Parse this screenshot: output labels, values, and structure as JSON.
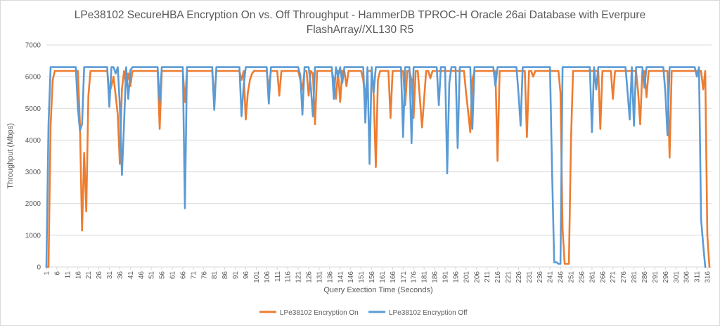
{
  "chart_data": {
    "type": "line",
    "title": "LPe38102 SecureHBA Encryption On vs. Off Throughput - HammerDB TPROC-H Oracle 26ai Database with Everpure FlashArray//XL130 R5",
    "title_lines": [
      "LPe38102 SecureHBA Encryption On vs. Off Throughput - HammerDB TPROC-H Oracle 26ai Database with Everpure",
      "FlashArray//XL130 R5"
    ],
    "xlabel": "Query Exection Time (Seconds)",
    "ylabel": "Throughput (Mbps)",
    "xlim": [
      1,
      318
    ],
    "ylim": [
      0,
      7000
    ],
    "yticks": [
      0,
      1000,
      2000,
      3000,
      4000,
      5000,
      6000,
      7000
    ],
    "xticks": [
      1,
      6,
      11,
      16,
      21,
      26,
      31,
      36,
      41,
      46,
      51,
      56,
      61,
      66,
      71,
      76,
      81,
      86,
      91,
      96,
      101,
      106,
      111,
      116,
      121,
      126,
      131,
      136,
      141,
      146,
      151,
      156,
      161,
      166,
      171,
      176,
      181,
      186,
      191,
      196,
      201,
      206,
      211,
      216,
      221,
      226,
      231,
      236,
      241,
      246,
      251,
      256,
      261,
      266,
      271,
      276,
      281,
      286,
      291,
      296,
      301,
      306,
      311,
      316
    ],
    "grid": "horizontal",
    "legend_position": "bottom",
    "series": [
      {
        "name": "LPe38102 Encryption On",
        "color": "#ED7D31",
        "x": [
          1,
          2,
          3,
          4,
          5,
          16,
          17,
          18,
          19,
          20,
          21,
          22,
          30,
          31,
          32,
          33,
          34,
          35,
          36,
          37,
          38,
          39,
          40,
          41,
          42,
          43,
          54,
          55,
          56,
          66,
          67,
          68,
          80,
          81,
          82,
          93,
          94,
          95,
          96,
          97,
          98,
          99,
          100,
          106,
          107,
          108,
          111,
          112,
          113,
          121,
          122,
          123,
          124,
          125,
          126,
          127,
          128,
          129,
          130,
          137,
          138,
          139,
          140,
          141,
          142,
          143,
          144,
          145,
          151,
          152,
          153,
          154,
          155,
          156,
          157,
          158,
          159,
          160,
          161,
          162,
          164,
          165,
          166,
          171,
          172,
          173,
          174,
          175,
          176,
          177,
          178,
          179,
          180,
          182,
          183,
          184,
          185,
          200,
          201,
          202,
          203,
          204,
          205,
          215,
          216,
          217,
          229,
          230,
          231,
          232,
          233,
          234,
          245,
          246,
          247,
          248,
          249,
          250,
          251,
          252,
          264,
          265,
          266,
          270,
          271,
          272,
          282,
          283,
          284,
          285,
          286,
          287,
          288,
          297,
          298,
          299,
          313,
          314,
          315,
          316,
          317
        ],
        "y": [
          0,
          0,
          4500,
          5900,
          6180,
          6180,
          4500,
          1150,
          3600,
          1750,
          5400,
          6180,
          6180,
          5500,
          5700,
          6000,
          5400,
          4800,
          3250,
          5600,
          6180,
          5700,
          6100,
          5700,
          6180,
          6180,
          6180,
          4350,
          6180,
          6180,
          5200,
          6180,
          6180,
          5300,
          6180,
          6180,
          5900,
          6180,
          4650,
          5500,
          5900,
          6100,
          6180,
          6180,
          5600,
          6180,
          6180,
          5400,
          6180,
          6180,
          5900,
          5600,
          6180,
          6180,
          5400,
          6180,
          6100,
          4500,
          6180,
          6180,
          5900,
          5300,
          6180,
          5200,
          6180,
          6180,
          5700,
          6180,
          6180,
          5900,
          5300,
          6180,
          6180,
          6180,
          5400,
          3150,
          5900,
          6180,
          6180,
          6180,
          6180,
          4700,
          6180,
          6180,
          5100,
          6180,
          6180,
          5900,
          4700,
          6180,
          6180,
          5300,
          4400,
          6180,
          6180,
          5950,
          6180,
          6180,
          5500,
          4900,
          4250,
          5900,
          6180,
          6180,
          3350,
          6180,
          6180,
          4100,
          6180,
          6180,
          6000,
          6180,
          6180,
          5500,
          1200,
          100,
          100,
          100,
          4000,
          6180,
          6180,
          4350,
          6180,
          6180,
          5300,
          6180,
          6180,
          5500,
          4500,
          6180,
          6180,
          5350,
          6180,
          6180,
          3450,
          6180,
          6180,
          5600,
          6180,
          1000,
          0
        ]
      },
      {
        "name": "LPe38102 Encryption Off",
        "color": "#5B9BD5",
        "x": [
          1,
          2,
          3,
          4,
          15,
          16,
          17,
          18,
          19,
          20,
          30,
          31,
          32,
          33,
          34,
          35,
          36,
          37,
          38,
          39,
          40,
          41,
          42,
          43,
          54,
          55,
          56,
          66,
          67,
          68,
          80,
          81,
          82,
          93,
          94,
          95,
          96,
          106,
          107,
          108,
          121,
          122,
          123,
          124,
          125,
          126,
          127,
          128,
          129,
          137,
          138,
          139,
          140,
          141,
          142,
          143,
          152,
          153,
          154,
          155,
          156,
          157,
          158,
          159,
          160,
          170,
          171,
          172,
          174,
          175,
          176,
          177,
          187,
          188,
          189,
          191,
          192,
          193,
          194,
          195,
          196,
          197,
          198,
          203,
          204,
          205,
          214,
          215,
          216,
          225,
          226,
          227,
          228,
          229,
          230,
          241,
          242,
          243,
          244,
          245,
          246,
          247,
          248,
          249,
          260,
          261,
          262,
          263,
          264,
          265,
          266,
          267,
          277,
          278,
          279,
          280,
          281,
          282,
          283,
          285,
          286,
          287,
          295,
          296,
          297,
          298,
          309,
          310,
          311,
          312,
          313,
          314,
          315
        ],
        "y": [
          0,
          4500,
          6300,
          6300,
          6300,
          5000,
          4300,
          4500,
          6300,
          6300,
          6300,
          5050,
          6300,
          6300,
          6100,
          6300,
          5100,
          2900,
          4500,
          6300,
          5300,
          6200,
          6300,
          6300,
          6300,
          5200,
          6300,
          6300,
          1850,
          6300,
          6300,
          4950,
          6300,
          6300,
          4750,
          5700,
          6300,
          6300,
          5150,
          6300,
          6300,
          6050,
          4800,
          6300,
          6300,
          6300,
          5700,
          4750,
          6300,
          6300,
          5300,
          6300,
          6000,
          6300,
          5800,
          6300,
          6300,
          4550,
          6300,
          3250,
          6300,
          5500,
          6300,
          6300,
          6300,
          6300,
          4100,
          6300,
          6300,
          3900,
          6300,
          6300,
          6300,
          5100,
          6300,
          6300,
          2950,
          5800,
          6300,
          6300,
          6300,
          3750,
          6300,
          6300,
          4350,
          6300,
          6300,
          5700,
          6300,
          6300,
          5450,
          4450,
          6300,
          6300,
          6300,
          6300,
          3000,
          150,
          150,
          100,
          100,
          6300,
          6300,
          6300,
          6300,
          4250,
          6300,
          5600,
          6300,
          6300,
          6300,
          6300,
          6300,
          5500,
          4650,
          6300,
          4450,
          6300,
          6300,
          6300,
          5650,
          6300,
          6300,
          5500,
          4150,
          6300,
          6300,
          6300,
          6000,
          6300,
          1500,
          700,
          0
        ]
      }
    ]
  }
}
